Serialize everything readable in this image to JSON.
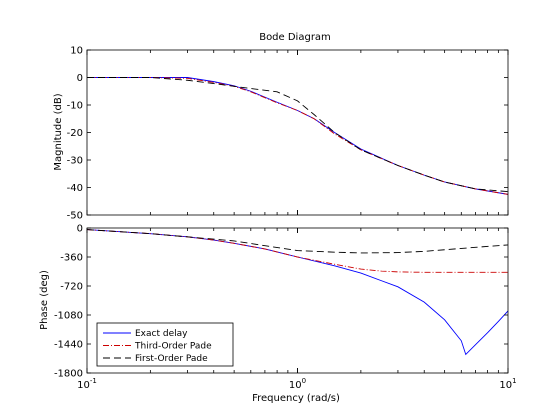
{
  "chart_data": {
    "type": "line",
    "title": "Bode Diagram",
    "xlabel": "Frequency  (rad/s)",
    "xscale": "log",
    "xlim": [
      0.1,
      10
    ],
    "x_ticks": [
      {
        "value": 0.1,
        "base": "10",
        "exp": "-1"
      },
      {
        "value": 1,
        "base": "10",
        "exp": "0"
      },
      {
        "value": 10,
        "base": "10",
        "exp": "1"
      }
    ],
    "grid": false,
    "legend": {
      "placement": "lower-left",
      "entries": [
        "Exact delay",
        "Third-Order Pade",
        "First-Order Pade"
      ]
    },
    "series_styles": [
      {
        "name": "Exact delay",
        "color": "#0000ff",
        "dash": ""
      },
      {
        "name": "Third-Order Pade",
        "color": "#cc0000",
        "dash": "6,2,1,2"
      },
      {
        "name": "First-Order Pade",
        "color": "#000000",
        "dash": "7,4"
      }
    ],
    "panels": [
      {
        "id": "magnitude",
        "ylabel": "Magnitude (dB)",
        "ylim": [
          -50,
          10
        ],
        "y_ticks": [
          10,
          0,
          -10,
          -20,
          -30,
          -40,
          -50
        ],
        "series": [
          {
            "name": "Exact delay",
            "x": [
              0.1,
              0.2,
              0.3,
              0.4,
              0.5,
              0.6,
              0.8,
              1.0,
              1.2,
              1.5,
              2.0,
              3.0,
              4.0,
              5.0,
              7.0,
              10.0
            ],
            "y": [
              0,
              0,
              0,
              -1.5,
              -3,
              -5,
              -9,
              -12,
              -15,
              -20,
              -26,
              -32,
              -35.5,
              -38,
              -40.5,
              -42.5
            ]
          },
          {
            "name": "Third-Order Pade",
            "x": [
              0.1,
              0.2,
              0.3,
              0.4,
              0.5,
              0.6,
              0.8,
              1.0,
              1.2,
              1.5,
              2.0,
              3.0,
              4.0,
              5.0,
              7.0,
              10.0
            ],
            "y": [
              0,
              0,
              -0.3,
              -1.8,
              -3.2,
              -5.2,
              -9.2,
              -12,
              -15,
              -20.5,
              -26.3,
              -32,
              -35.5,
              -38,
              -40.5,
              -42.5
            ]
          },
          {
            "name": "First-Order Pade",
            "x": [
              0.1,
              0.2,
              0.3,
              0.4,
              0.5,
              0.6,
              0.8,
              1.0,
              1.2,
              1.5,
              2.0,
              3.0,
              4.0,
              5.0,
              7.0,
              10.0
            ],
            "y": [
              0,
              0,
              -1,
              -2.2,
              -3.2,
              -4,
              -5.2,
              -8.5,
              -13.5,
              -20,
              -26.3,
              -32,
              -35.5,
              -38,
              -40.5,
              -41.5
            ]
          }
        ]
      },
      {
        "id": "phase",
        "ylabel": "Phase (deg)",
        "ylim": [
          -1800,
          0
        ],
        "y_ticks": [
          0,
          -360,
          -720,
          -1080,
          -1440,
          -1800
        ],
        "series": [
          {
            "name": "Exact delay",
            "x": [
              0.1,
              0.2,
              0.3,
              0.4,
              0.5,
              0.7,
              1.0,
              1.5,
              2.0,
              3.0,
              4.0,
              5.0,
              6.0,
              6.3,
              7.0,
              8.0,
              9.0,
              10.0
            ],
            "y": [
              -20,
              -70,
              -110,
              -150,
              -190,
              -260,
              -360,
              -470,
              -560,
              -730,
              -920,
              -1140,
              -1400,
              -1570,
              -1450,
              -1300,
              -1160,
              -1030
            ]
          },
          {
            "name": "Third-Order Pade",
            "x": [
              0.1,
              0.2,
              0.3,
              0.4,
              0.5,
              0.7,
              1.0,
              1.5,
              2.0,
              2.5,
              3.0,
              4.0,
              5.0,
              7.0,
              10.0
            ],
            "y": [
              -20,
              -70,
              -110,
              -150,
              -190,
              -260,
              -360,
              -450,
              -510,
              -535,
              -545,
              -550,
              -550,
              -550,
              -550
            ]
          },
          {
            "name": "First-Order Pade",
            "x": [
              0.1,
              0.2,
              0.3,
              0.5,
              0.7,
              1.0,
              1.5,
              2.0,
              3.0,
              4.0,
              5.0,
              7.0,
              10.0
            ],
            "y": [
              -20,
              -70,
              -110,
              -160,
              -220,
              -280,
              -300,
              -310,
              -305,
              -290,
              -270,
              -240,
              -210
            ]
          }
        ]
      }
    ]
  }
}
